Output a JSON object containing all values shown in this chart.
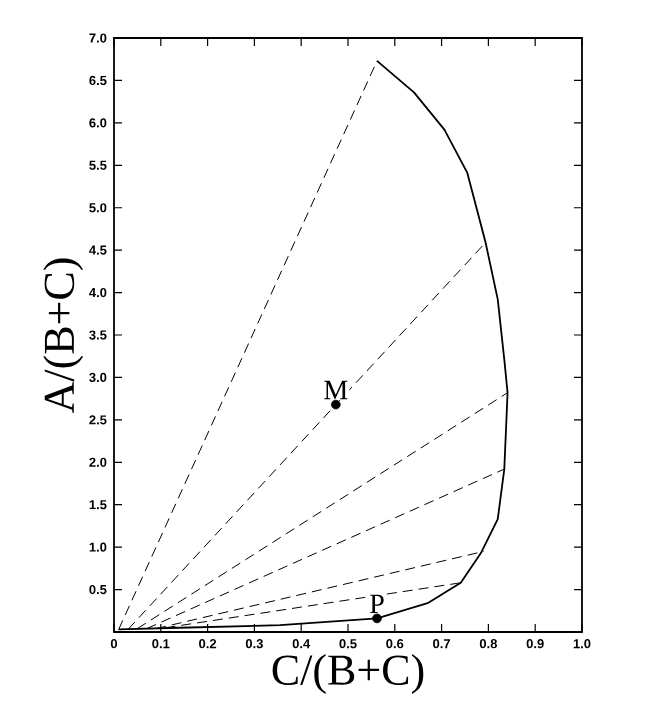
{
  "chart_data": {
    "type": "line",
    "xlabel": "C/(B+C)",
    "ylabel": "A/(B+C)",
    "xlim": [
      0,
      1.0
    ],
    "ylim": [
      0,
      7.0
    ],
    "xticks": [
      {
        "value": 0,
        "label": "0"
      },
      {
        "value": 0.1,
        "label": "0.1"
      },
      {
        "value": 0.2,
        "label": "0.2"
      },
      {
        "value": 0.3,
        "label": "0.3"
      },
      {
        "value": 0.4,
        "label": "0.4"
      },
      {
        "value": 0.5,
        "label": "0.5"
      },
      {
        "value": 0.6,
        "label": "0.6"
      },
      {
        "value": 0.7,
        "label": "0.7"
      },
      {
        "value": 0.8,
        "label": "0.8"
      },
      {
        "value": 0.9,
        "label": "0.9"
      },
      {
        "value": 1.0,
        "label": "1.0"
      }
    ],
    "yticks": [
      {
        "value": 0.5,
        "label": "0.5"
      },
      {
        "value": 1.0,
        "label": "1.0"
      },
      {
        "value": 1.5,
        "label": "1.5"
      },
      {
        "value": 2.0,
        "label": "2.0"
      },
      {
        "value": 2.5,
        "label": "2.5"
      },
      {
        "value": 3.0,
        "label": "3.0"
      },
      {
        "value": 3.5,
        "label": "3.5"
      },
      {
        "value": 4.0,
        "label": "4.0"
      },
      {
        "value": 4.5,
        "label": "4.5"
      },
      {
        "value": 5.0,
        "label": "5.0"
      },
      {
        "value": 5.5,
        "label": "5.5"
      },
      {
        "value": 6.0,
        "label": "6.0"
      },
      {
        "value": 6.5,
        "label": "6.5"
      },
      {
        "value": 7.0,
        "label": "7.0"
      }
    ],
    "series": [
      {
        "color": "#000000",
        "line_style": "solid",
        "marker": "none",
        "x": [
          0.01,
          0.14,
          0.355,
          0.562,
          0.67,
          0.741,
          0.784,
          0.82,
          0.834,
          0.841,
          0.834,
          0.82,
          0.794,
          0.755,
          0.706,
          0.641,
          0.562
        ],
        "values": [
          0.03,
          0.05,
          0.08,
          0.16,
          0.34,
          0.58,
          0.93,
          1.33,
          1.92,
          2.82,
          3.21,
          3.92,
          4.59,
          5.41,
          5.92,
          6.36,
          6.73
        ]
      },
      {
        "color": "#000000",
        "line_style": "dashed",
        "marker": "none",
        "x": [
          0.01,
          0.562
        ],
        "values": [
          0.03,
          6.73
        ]
      },
      {
        "color": "#000000",
        "line_style": "dashed",
        "marker": "none",
        "x": [
          0.03,
          0.794
        ],
        "values": [
          0.03,
          4.59
        ]
      },
      {
        "color": "#000000",
        "line_style": "dashed",
        "marker": "none",
        "x": [
          0.05,
          0.841
        ],
        "values": [
          0.04,
          2.82
        ]
      },
      {
        "color": "#000000",
        "line_style": "dashed",
        "marker": "none",
        "x": [
          0.07,
          0.834
        ],
        "values": [
          0.04,
          1.92
        ]
      },
      {
        "color": "#000000",
        "line_style": "dashed",
        "marker": "none",
        "x": [
          0.09,
          0.79
        ],
        "values": [
          0.04,
          0.95
        ]
      },
      {
        "color": "#000000",
        "line_style": "dashed",
        "marker": "none",
        "x": [
          0.11,
          0.741
        ],
        "values": [
          0.05,
          0.58
        ]
      },
      {
        "type": "scatter",
        "color": "#000000",
        "marker": "circle",
        "x": [
          0.474,
          0.562
        ],
        "values": [
          2.68,
          0.16
        ]
      }
    ],
    "annotations": [
      {
        "text": "M",
        "x": 0.474,
        "y": 2.68
      },
      {
        "text": "P",
        "x": 0.562,
        "y": 0.16
      }
    ]
  }
}
